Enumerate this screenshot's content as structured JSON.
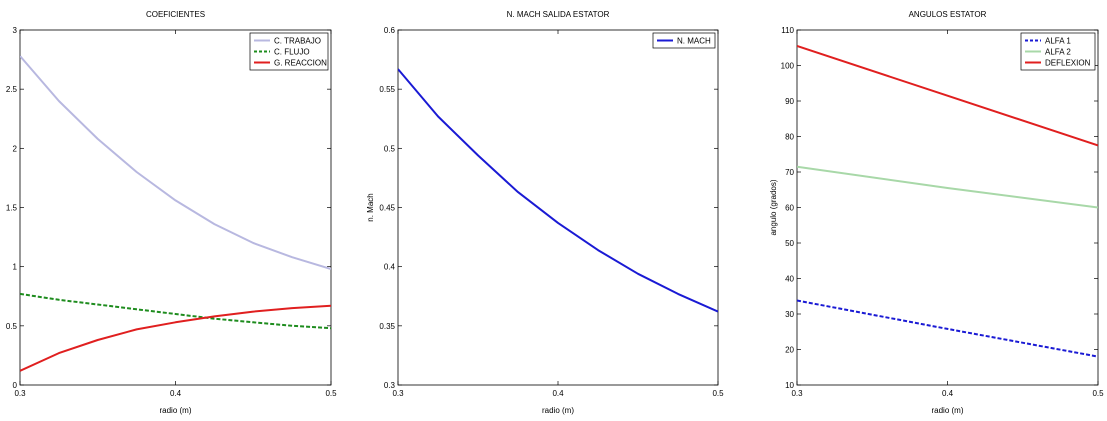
{
  "chart_data": [
    {
      "type": "line",
      "title": "COEFICIENTES",
      "xlabel": "radio (m)",
      "ylabel": "",
      "xlim": [
        0.3,
        0.5
      ],
      "ylim": [
        0,
        3
      ],
      "xticks": [
        "0.3",
        "0.4",
        "0.5"
      ],
      "yticks": [
        "0",
        "0.5",
        "1",
        "1.5",
        "2",
        "2.5",
        "3"
      ],
      "grid": false,
      "legend_position": "top-right",
      "x": [
        0.3,
        0.325,
        0.35,
        0.375,
        0.4,
        0.425,
        0.45,
        0.475,
        0.5
      ],
      "series": [
        {
          "name": "C. TRABAJO",
          "color": "#b8b8e0",
          "style": "solid",
          "values": [
            2.78,
            2.4,
            2.08,
            1.8,
            1.56,
            1.36,
            1.2,
            1.08,
            0.98
          ]
        },
        {
          "name": "C. FLUJO",
          "color": "#1e8c1e",
          "style": "dashed",
          "values": [
            0.77,
            0.72,
            0.68,
            0.64,
            0.6,
            0.56,
            0.53,
            0.5,
            0.48
          ]
        },
        {
          "name": "G. REACCION",
          "color": "#e01f1f",
          "style": "solid",
          "values": [
            0.12,
            0.27,
            0.38,
            0.47,
            0.53,
            0.58,
            0.62,
            0.65,
            0.67
          ]
        }
      ]
    },
    {
      "type": "line",
      "title": "N. MACH SALIDA ESTATOR",
      "xlabel": "radio (m)",
      "ylabel": "n. Mach",
      "xlim": [
        0.3,
        0.5
      ],
      "ylim": [
        0.3,
        0.6
      ],
      "xticks": [
        "0.3",
        "0.4",
        "0.5"
      ],
      "yticks": [
        "0.3",
        "0.35",
        "0.4",
        "0.45",
        "0.5",
        "0.55",
        "0.6"
      ],
      "grid": false,
      "legend_position": "top-right",
      "x": [
        0.3,
        0.325,
        0.35,
        0.375,
        0.4,
        0.425,
        0.45,
        0.475,
        0.5
      ],
      "series": [
        {
          "name": "N. MACH",
          "color": "#1a1ad4",
          "style": "solid",
          "values": [
            0.567,
            0.527,
            0.494,
            0.463,
            0.437,
            0.414,
            0.394,
            0.377,
            0.362
          ]
        }
      ]
    },
    {
      "type": "line",
      "title": "ANGULOS ESTATOR",
      "xlabel": "radio (m)",
      "ylabel": "angulo (grados)",
      "xlim": [
        0.3,
        0.5
      ],
      "ylim": [
        10,
        110
      ],
      "xticks": [
        "0.3",
        "0.4",
        "0.5"
      ],
      "yticks": [
        "10",
        "20",
        "30",
        "40",
        "50",
        "60",
        "70",
        "80",
        "90",
        "100",
        "110"
      ],
      "grid": false,
      "legend_position": "top-right",
      "x": [
        0.3,
        0.4,
        0.5
      ],
      "series": [
        {
          "name": "ALFA 1",
          "color": "#1a1ad4",
          "style": "dashed",
          "values": [
            33.8,
            25.8,
            18
          ]
        },
        {
          "name": "ALFA 2",
          "color": "#a8d8a8",
          "style": "solid",
          "values": [
            71.5,
            65.5,
            60
          ]
        },
        {
          "name": "DEFLEXION",
          "color": "#e01f1f",
          "style": "solid",
          "values": [
            105.5,
            91.5,
            77.5
          ]
        }
      ]
    }
  ]
}
